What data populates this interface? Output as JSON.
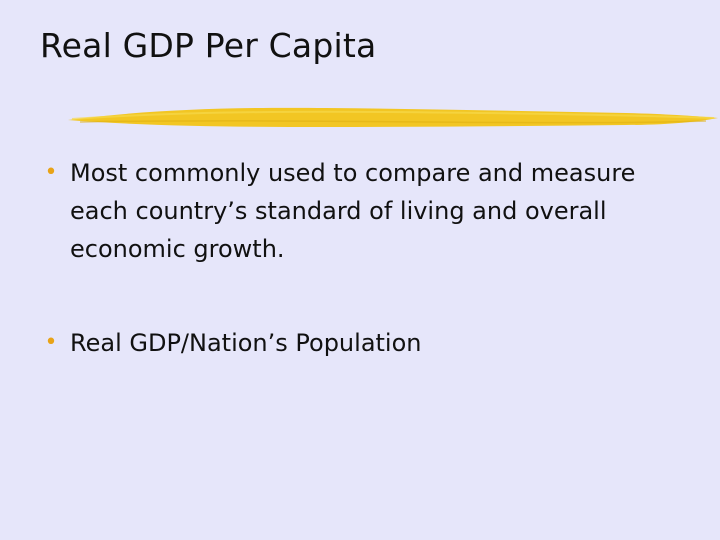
{
  "slide": {
    "title": "Real GDP Per Capita",
    "accent_color": "#f2c417",
    "background_color": "#e6e6fa",
    "bullet_color": "#e8a317",
    "bullets": [
      {
        "marker": "•",
        "text": "Most commonly used to compare and measure each country’s standard of living and overall economic growth."
      },
      {
        "marker": "•",
        "text": "Real GDP/Nation’s Population"
      }
    ]
  }
}
